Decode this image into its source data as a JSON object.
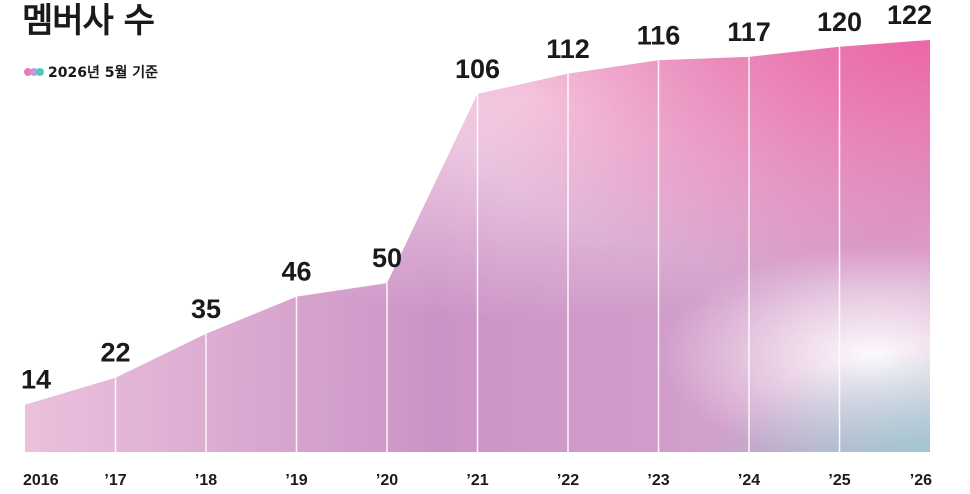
{
  "header": {
    "title": "멤버사 수",
    "subtitle": "2026년 5월 기준"
  },
  "colors": {
    "dot1": "#f07ab8",
    "dot2": "#c39be0",
    "dot3": "#4fc9c4",
    "area_top_right": "#ef5fa0",
    "area_mid": "#c48bc2",
    "area_light": "#f6d6e6",
    "area_teal": "#8fd6d2"
  },
  "chart_data": {
    "type": "area",
    "title": "멤버사 수",
    "subtitle": "2026년 5월 기준",
    "categories": [
      "2016",
      "’17",
      "’18",
      "’19",
      "’20",
      "’21",
      "’22",
      "’23",
      "’24",
      "’25",
      "’26"
    ],
    "values": [
      14,
      22,
      35,
      46,
      50,
      106,
      112,
      116,
      117,
      120,
      122
    ],
    "value_labels": [
      "14",
      "22",
      "35",
      "46",
      "50",
      "106",
      "112",
      "116",
      "117",
      "120",
      "122"
    ],
    "xlabel": "",
    "ylabel": "",
    "ylim": [
      0,
      122
    ],
    "grid": false,
    "legend": "none"
  }
}
